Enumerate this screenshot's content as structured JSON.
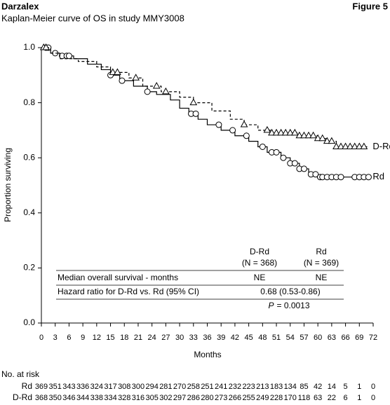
{
  "chart_data": {
    "type": "step",
    "title": "Darzalex",
    "figure_label": "Figure 5",
    "subtitle": "Kaplan-Meier curve of OS in study MMY3008",
    "xlabel": "Months",
    "ylabel": "Proportion surviving",
    "xlim": [
      0,
      72
    ],
    "ylim": [
      0,
      1
    ],
    "xticks": [
      0,
      3,
      6,
      9,
      12,
      15,
      18,
      21,
      24,
      27,
      30,
      33,
      36,
      39,
      42,
      45,
      48,
      51,
      54,
      57,
      60,
      63,
      66,
      69,
      72
    ],
    "yticks": [
      {
        "value": 0,
        "label": "0.0"
      },
      0.2,
      0.4,
      0.6,
      0.8,
      {
        "value": 1,
        "label": "1.0"
      }
    ],
    "series": [
      {
        "name": "Rd",
        "color": "#000000",
        "line_style": "solid",
        "marker": "circle",
        "x": [
          0,
          2,
          4,
          7,
          10,
          13,
          15,
          17,
          20,
          23,
          25,
          28,
          30,
          32,
          34,
          36,
          39,
          42,
          45,
          47,
          49,
          52,
          54,
          56,
          58,
          60,
          71
        ],
        "values": [
          1.0,
          0.98,
          0.97,
          0.96,
          0.94,
          0.92,
          0.9,
          0.88,
          0.86,
          0.84,
          0.83,
          0.81,
          0.78,
          0.76,
          0.74,
          0.72,
          0.7,
          0.68,
          0.66,
          0.64,
          0.62,
          0.6,
          0.58,
          0.56,
          0.54,
          0.53,
          0.53
        ],
        "censored_x": [
          1,
          1.5,
          3,
          4.5,
          5.5,
          6,
          15,
          17.5,
          23,
          32.5,
          33.5,
          38.5,
          41.5,
          44.5,
          48,
          50,
          51,
          52.5,
          54,
          55,
          56,
          57,
          58.5,
          59.5,
          60.5,
          61,
          62,
          63,
          64,
          65,
          68,
          69,
          70,
          71
        ],
        "censored_values": [
          1.0,
          1.0,
          0.98,
          0.97,
          0.97,
          0.97,
          0.9,
          0.88,
          0.84,
          0.76,
          0.76,
          0.72,
          0.7,
          0.68,
          0.64,
          0.62,
          0.62,
          0.6,
          0.58,
          0.58,
          0.56,
          0.56,
          0.54,
          0.54,
          0.53,
          0.53,
          0.53,
          0.53,
          0.53,
          0.53,
          0.53,
          0.53,
          0.53,
          0.53
        ],
        "at_risk": [
          369,
          351,
          343,
          336,
          324,
          317,
          308,
          300,
          294,
          281,
          270,
          258,
          251,
          241,
          232,
          223,
          213,
          183,
          134,
          85,
          42,
          14,
          5,
          1,
          0
        ]
      },
      {
        "name": "D-Rd",
        "color": "#000000",
        "line_style": "dashed",
        "marker": "triangle",
        "x": [
          0,
          2,
          4,
          8,
          12,
          15,
          19,
          22,
          26,
          30,
          33,
          37,
          41,
          44,
          47,
          50,
          56,
          60,
          62,
          64,
          71
        ],
        "values": [
          1.0,
          0.98,
          0.96,
          0.95,
          0.93,
          0.91,
          0.89,
          0.86,
          0.84,
          0.82,
          0.8,
          0.77,
          0.74,
          0.72,
          0.7,
          0.69,
          0.68,
          0.67,
          0.66,
          0.64,
          0.64
        ],
        "censored_x": [
          0.5,
          1,
          15.5,
          16.5,
          20.5,
          25,
          27,
          33,
          44,
          49,
          50,
          51,
          52,
          53,
          54,
          55,
          56,
          57,
          58,
          59,
          60,
          61,
          62,
          63,
          64,
          65,
          66,
          67,
          68,
          69,
          70
        ],
        "censored_values": [
          1.0,
          1.0,
          0.91,
          0.91,
          0.89,
          0.86,
          0.84,
          0.8,
          0.72,
          0.7,
          0.69,
          0.69,
          0.69,
          0.69,
          0.69,
          0.69,
          0.68,
          0.68,
          0.68,
          0.68,
          0.67,
          0.67,
          0.66,
          0.66,
          0.64,
          0.64,
          0.64,
          0.64,
          0.64,
          0.64,
          0.64
        ],
        "at_risk": [
          368,
          350,
          346,
          344,
          338,
          334,
          328,
          316,
          305,
          302,
          297,
          286,
          280,
          273,
          266,
          255,
          249,
          228,
          170,
          118,
          63,
          22,
          6,
          1,
          0
        ]
      }
    ],
    "at_risk_title": "No. at risk",
    "inset_table": {
      "columns": [
        {
          "name": "D-Rd",
          "n": "(N = 368)"
        },
        {
          "name": "Rd",
          "n": "(N = 369)"
        }
      ],
      "rows": [
        {
          "label": "Median overall survival - months",
          "cells": [
            "NE",
            "NE"
          ]
        },
        {
          "label": "Hazard ratio for D-Rd vs. Rd (95% CI)",
          "value": "0.68 (0.53-0.86)"
        }
      ],
      "p_symbol": "P",
      "p_text": "= 0.0013"
    }
  }
}
